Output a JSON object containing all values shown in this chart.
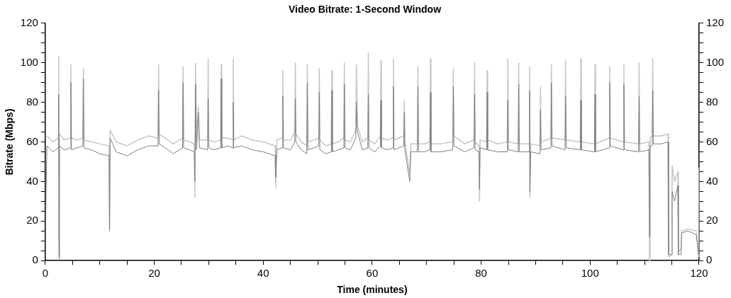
{
  "chart_data": {
    "type": "line",
    "title": "Video Bitrate: 1-Second Window",
    "xlabel": "Time (minutes)",
    "ylabel": "Bitrate (Mbps)",
    "xlim": [
      0,
      120
    ],
    "xticks": [
      0,
      {
        "value": 5,
        "label": null
      },
      {
        "value": 10,
        "label": null
      },
      {
        "value": 15,
        "label": null
      },
      20,
      {
        "value": 25,
        "label": null
      },
      {
        "value": 30,
        "label": null
      },
      {
        "value": 35,
        "label": null
      },
      40,
      {
        "value": 45,
        "label": null
      },
      {
        "value": 50,
        "label": null
      },
      {
        "value": 55,
        "label": null
      },
      60,
      {
        "value": 65,
        "label": null
      },
      {
        "value": 70,
        "label": null
      },
      {
        "value": 75,
        "label": null
      },
      80,
      {
        "value": 85,
        "label": null
      },
      {
        "value": 90,
        "label": null
      },
      {
        "value": 95,
        "label": null
      },
      100,
      {
        "value": 105,
        "label": null
      },
      {
        "value": 110,
        "label": null
      },
      {
        "value": 115,
        "label": null
      },
      120
    ],
    "ylim": [
      0,
      120
    ],
    "yticks": [
      0,
      {
        "value": 5,
        "label": null
      },
      {
        "value": 10,
        "label": null
      },
      {
        "value": 15,
        "label": null
      },
      20,
      {
        "value": 25,
        "label": null
      },
      {
        "value": 30,
        "label": null
      },
      {
        "value": 35,
        "label": null
      },
      40,
      {
        "value": 45,
        "label": null
      },
      {
        "value": 50,
        "label": null
      },
      {
        "value": 55,
        "label": null
      },
      60,
      {
        "value": 65,
        "label": null
      },
      {
        "value": 70,
        "label": null
      },
      {
        "value": 75,
        "label": null
      },
      80,
      {
        "value": 85,
        "label": null
      },
      {
        "value": 90,
        "label": null
      },
      {
        "value": 95,
        "label": null
      },
      100,
      {
        "value": 105,
        "label": null
      },
      {
        "value": 110,
        "label": null
      },
      {
        "value": 115,
        "label": null
      },
      120
    ],
    "y2lim": [
      0,
      120
    ],
    "y2ticks": [
      0,
      {
        "value": 5,
        "label": null
      },
      {
        "value": 10,
        "label": null
      },
      {
        "value": 15,
        "label": null
      },
      20,
      {
        "value": 25,
        "label": null
      },
      {
        "value": 30,
        "label": null
      },
      {
        "value": 35,
        "label": null
      },
      40,
      {
        "value": 45,
        "label": null
      },
      {
        "value": 50,
        "label": null
      },
      {
        "value": 55,
        "label": null
      },
      60,
      {
        "value": 65,
        "label": null
      },
      {
        "value": 70,
        "label": null
      },
      {
        "value": 75,
        "label": null
      },
      80,
      {
        "value": 85,
        "label": null
      },
      {
        "value": 90,
        "label": null
      },
      {
        "value": 95,
        "label": null
      },
      100,
      {
        "value": 105,
        "label": null
      },
      {
        "value": 110,
        "label": null
      },
      {
        "value": 115,
        "label": null
      },
      120
    ],
    "grid": false,
    "legend": false,
    "marker": "none",
    "line_style": "solid",
    "x": [
      0,
      0.3,
      1.5,
      2.37,
      2.47,
      2.52,
      2.6,
      3.5,
      4.6,
      4.7,
      4.8,
      5.8,
      6.9,
      7.0,
      7.1,
      8.5,
      10,
      11.7,
      11.8,
      11.9,
      13,
      15,
      17,
      19,
      20.7,
      20.8,
      20.9,
      22,
      23.5,
      25.2,
      25.3,
      25.4,
      26.5,
      27.35,
      27.45,
      27.6,
      27.75,
      28.1,
      28.3,
      29.8,
      29.9,
      30.0,
      31,
      32.2,
      32.3,
      32.4,
      33.5,
      34.4,
      34.5,
      34.6,
      36,
      38,
      40,
      42.2,
      42.3,
      42.5,
      43.5,
      43.6,
      43.7,
      45,
      45.8,
      45.9,
      46.0,
      47,
      48.0,
      48.1,
      48.2,
      49.3,
      50.2,
      50.3,
      50.4,
      51.5,
      52.5,
      52.6,
      52.7,
      53.8,
      54.8,
      54.9,
      55.0,
      56,
      57.0,
      57.1,
      57.3,
      58.2,
      59.2,
      59.3,
      59.4,
      60.5,
      61.5,
      61.6,
      61.7,
      62.8,
      63.8,
      63.9,
      64.0,
      65.8,
      65.9,
      66.0,
      66.9,
      67.1,
      68.3,
      68.4,
      68.5,
      69.6,
      70.6,
      70.7,
      70.8,
      72.5,
      74.8,
      74.9,
      75.0,
      77,
      78.7,
      78.8,
      78.9,
      79.6,
      79.7,
      79.8,
      81.0,
      81.1,
      81.2,
      83,
      84.8,
      84.9,
      85.0,
      86.8,
      86.9,
      87.0,
      88.8,
      88.9,
      88.95,
      89.1,
      90.8,
      90.9,
      91.0,
      92.8,
      92.9,
      93.0,
      95.4,
      95.5,
      95.6,
      98.2,
      98.3,
      98.4,
      100.8,
      100.9,
      101.0,
      103.5,
      103.6,
      103.7,
      106.1,
      106.2,
      106.3,
      108.9,
      109,
      109.1,
      110.8,
      110.9,
      111.0,
      111.4,
      111.5,
      111.6,
      113,
      114.3,
      114.4,
      115.0,
      115.05,
      115.5,
      116.1,
      116.2,
      116.7,
      116.8,
      118,
      119.5,
      119.9,
      120
    ],
    "series": [
      {
        "color": "#c8c8c8",
        "values": [
          null,
          63,
          60,
          62,
          103,
          3,
          64,
          61,
          62,
          99,
          62,
          61,
          62,
          97,
          61,
          60,
          59,
          58,
          16,
          66,
          60,
          58,
          61,
          63,
          62,
          99,
          64,
          62,
          59,
          62,
          98,
          61,
          60,
          59,
          32,
          100,
          60,
          78,
          61,
          61,
          102,
          61,
          60,
          61,
          99,
          62,
          62,
          61,
          102,
          61,
          63,
          61,
          60,
          58,
          37,
          61,
          62,
          96,
          61,
          61,
          65,
          100,
          64,
          60,
          58,
          99,
          60,
          61,
          62,
          97,
          61,
          58,
          59,
          96,
          59,
          60,
          62,
          100,
          61,
          60,
          66,
          99,
          68,
          60,
          62,
          105,
          61,
          59,
          63,
          101,
          62,
          61,
          62,
          102,
          61,
          63,
          81,
          60,
          44,
          59,
          59,
          98,
          59,
          59,
          60,
          102,
          59,
          59,
          60,
          97,
          63,
          59,
          61,
          100,
          60,
          58,
          30,
          61,
          60,
          96,
          61,
          59,
          60,
          102,
          60,
          59,
          100,
          59,
          59,
          98,
          32,
          59,
          58,
          88,
          60,
          62,
          99,
          62,
          61,
          101,
          61,
          60,
          102,
          60,
          59,
          99,
          59,
          62,
          98,
          62,
          60,
          99,
          60,
          59,
          100,
          59,
          60,
          0,
          62,
          63,
          102,
          63,
          63,
          64,
          2,
          3,
          48,
          40,
          45,
          4,
          6,
          15,
          16,
          15,
          2,
          47
        ]
      },
      {
        "color": "#7f7f7f",
        "values": [
          6,
          58,
          55,
          57,
          84,
          1,
          58,
          56,
          57,
          90,
          56,
          57,
          58,
          92,
          57,
          56,
          54,
          53,
          15,
          62,
          55,
          53,
          56,
          58,
          58,
          86,
          59,
          57,
          54,
          57,
          90,
          57,
          56,
          55,
          40,
          89,
          56,
          75,
          57,
          56,
          82,
          57,
          56,
          57,
          92,
          57,
          58,
          57,
          80,
          57,
          58,
          56,
          55,
          53,
          42,
          56,
          57,
          83,
          57,
          56,
          60,
          82,
          60,
          56,
          54,
          90,
          56,
          57,
          58,
          85,
          56,
          54,
          55,
          86,
          55,
          56,
          57,
          89,
          57,
          56,
          62,
          80,
          65,
          56,
          57,
          84,
          57,
          55,
          58,
          81,
          57,
          56,
          57,
          88,
          56,
          58,
          75,
          56,
          40,
          55,
          55,
          88,
          55,
          55,
          56,
          85,
          55,
          55,
          56,
          88,
          58,
          55,
          57,
          84,
          56,
          55,
          36,
          57,
          56,
          85,
          56,
          55,
          55,
          81,
          56,
          55,
          89,
          55,
          55,
          86,
          35,
          55,
          54,
          76,
          56,
          57,
          90,
          58,
          56,
          83,
          57,
          56,
          81,
          56,
          55,
          84,
          55,
          57,
          90,
          58,
          56,
          89,
          56,
          55,
          83,
          55,
          56,
          12,
          58,
          58,
          86,
          59,
          59,
          60,
          3,
          3,
          35,
          30,
          38,
          3,
          3,
          14,
          15,
          13,
          3,
          28
        ]
      }
    ]
  }
}
